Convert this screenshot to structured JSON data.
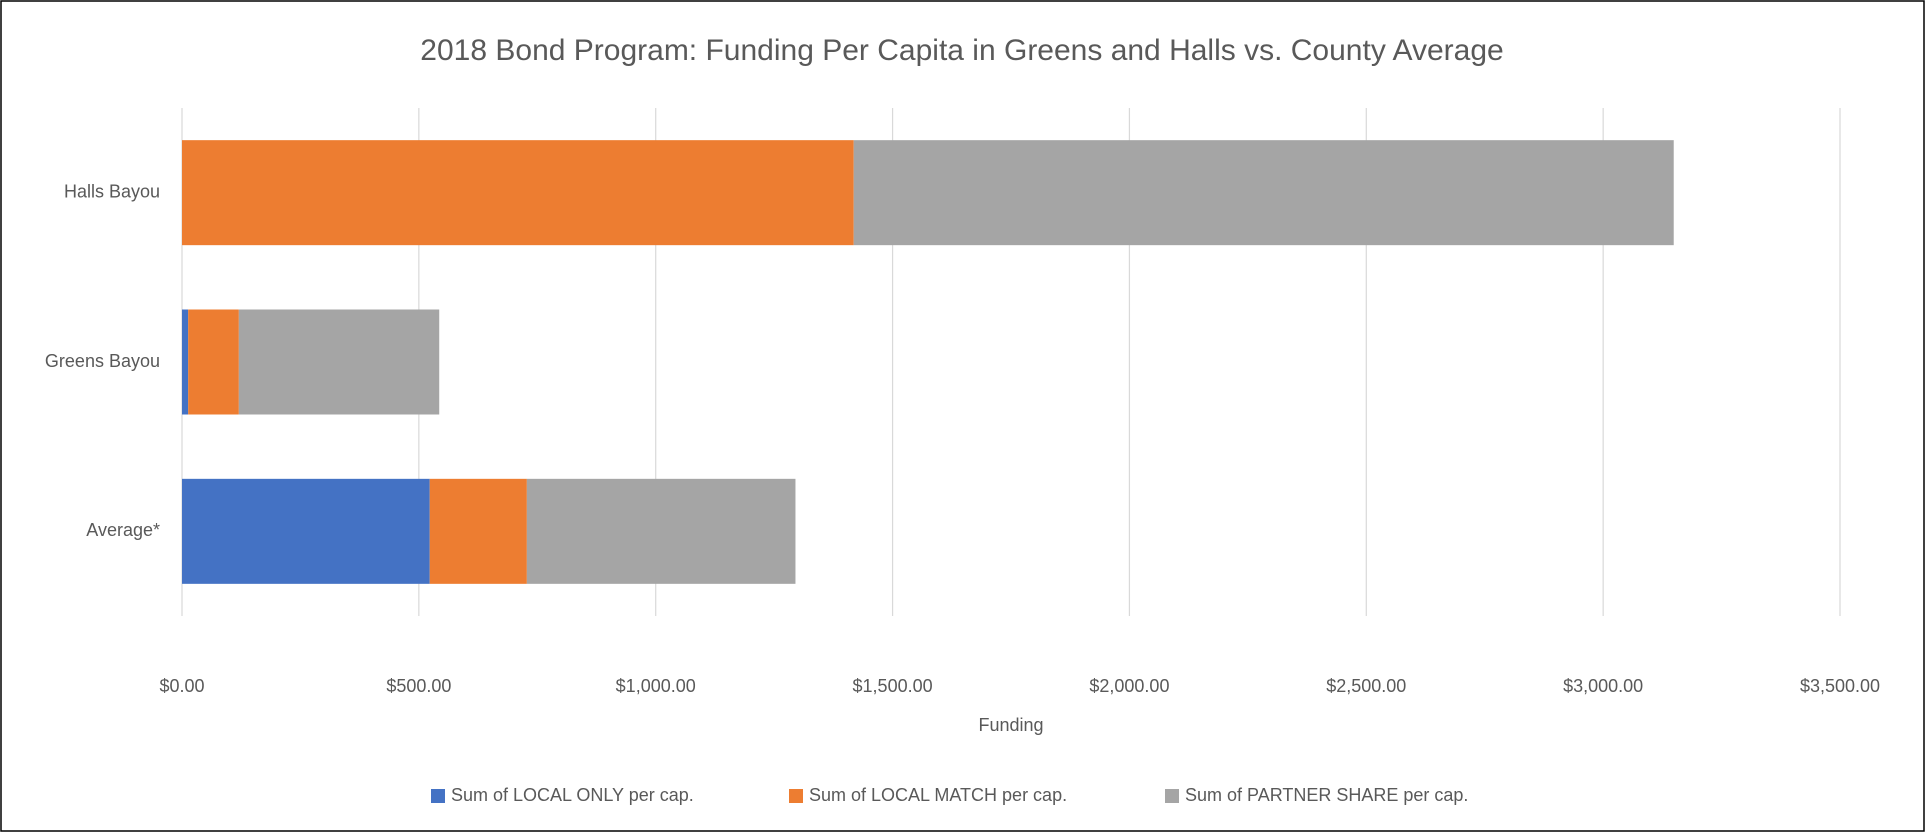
{
  "chart_data": {
    "type": "stacked-bar-horizontal",
    "title": "2018 Bond Program: Funding  Per Capita in Greens and Halls vs. County Average",
    "x_label": "Funding",
    "categories": [
      "Halls Bayou",
      "Greens Bayou",
      "Average*"
    ],
    "series": [
      {
        "name": "Sum of LOCAL ONLY per cap.",
        "color": "#4472c4",
        "values": [
          0,
          13,
          523
        ]
      },
      {
        "name": "Sum of LOCAL MATCH per cap.",
        "color": "#ed7d31",
        "values": [
          1418,
          107,
          205
        ]
      },
      {
        "name": "Sum of PARTNER SHARE per cap.",
        "color": "#a5a5a5",
        "values": [
          1731,
          423,
          567
        ]
      }
    ],
    "xlim": [
      0,
      3500
    ],
    "xticks": [
      {
        "value": 0,
        "label": "$0.00"
      },
      {
        "value": 500,
        "label": "$500.00"
      },
      {
        "value": 1000,
        "label": "$1,000.00"
      },
      {
        "value": 1500,
        "label": "$1,500.00"
      },
      {
        "value": 2000,
        "label": "$2,000.00"
      },
      {
        "value": 2500,
        "label": "$2,500.00"
      },
      {
        "value": 3000,
        "label": "$3,000.00"
      },
      {
        "value": 3500,
        "label": "$3,500.00"
      }
    ],
    "grid": true,
    "legend": "bottom"
  }
}
